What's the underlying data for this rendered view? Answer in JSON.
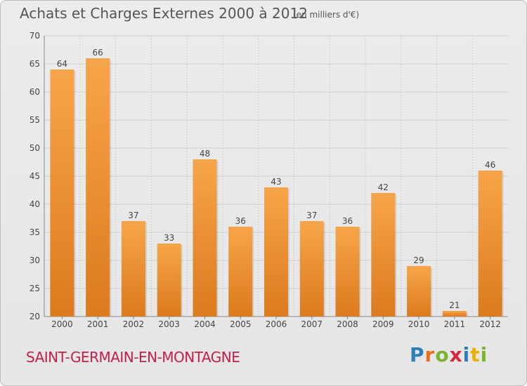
{
  "chart_title": "Achats et Charges Externes 2000 à 2012",
  "chart_unit": "(en milliers d'€)",
  "commune": "SAINT-GERMAIN-EN-MONTAGNE",
  "logo": {
    "text": "Proxiti",
    "letters": [
      "P",
      "r",
      "o",
      "x",
      "i",
      "t",
      "i"
    ],
    "colors": [
      "#2c7fb8",
      "#e8711a",
      "#7bb32e",
      "#d7263d",
      "#2c7fb8",
      "#e8b100",
      "#7bb32e"
    ]
  },
  "colors": {
    "bar_light": "#f7a54a",
    "bar_dark": "#dc7a1e",
    "grid": "#cfcfcf",
    "commune": "#c0204a"
  },
  "chart_data": {
    "type": "bar",
    "categories": [
      "2000",
      "2001",
      "2002",
      "2003",
      "2004",
      "2005",
      "2006",
      "2007",
      "2008",
      "2009",
      "2010",
      "2011",
      "2012"
    ],
    "values": [
      64,
      66,
      37,
      33,
      48,
      36,
      43,
      37,
      36,
      42,
      29,
      21,
      46
    ],
    "ylim": [
      20,
      70
    ],
    "yticks": [
      20,
      25,
      30,
      35,
      40,
      45,
      50,
      55,
      60,
      65,
      70
    ],
    "grid": true,
    "xlabel": "",
    "ylabel": ""
  }
}
